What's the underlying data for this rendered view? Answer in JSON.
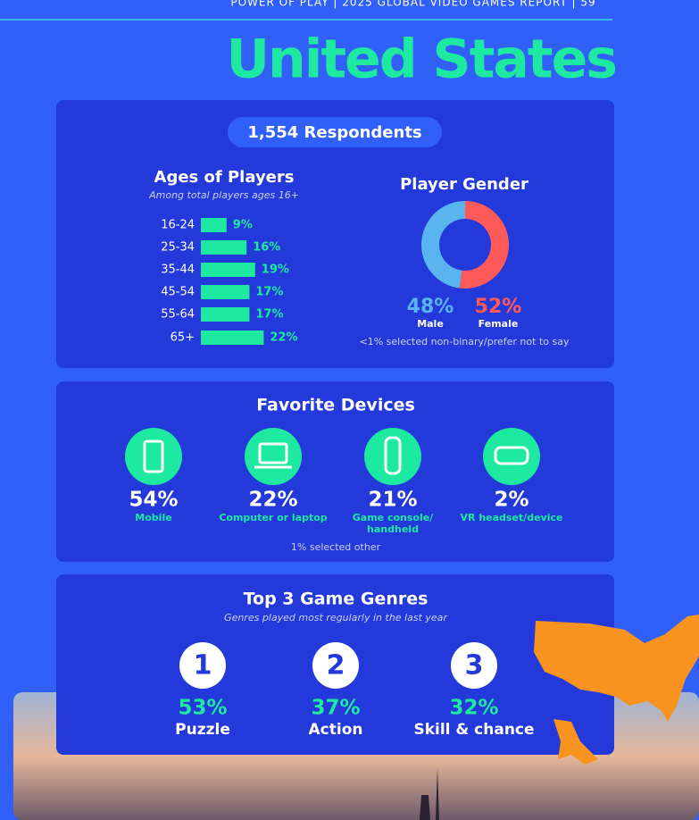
{
  "header": {
    "text": "POWER OF PLAY   |   2025 GLOBAL VIDEO GAMES REPORT   |   59"
  },
  "title": "United States",
  "respondents": "1,554 Respondents",
  "ages": {
    "title": "Ages of Players",
    "subtitle": "Among total players ages 16+",
    "categories": [
      "16-24",
      "25-34",
      "35-44",
      "45-54",
      "55-64",
      "65+"
    ],
    "values": [
      9,
      16,
      19,
      17,
      17,
      22
    ],
    "value_labels": [
      "9%",
      "16%",
      "19%",
      "17%",
      "17%",
      "22%"
    ],
    "color": "#1de9a0"
  },
  "gender": {
    "title": "Player Gender",
    "categories": [
      "Male",
      "Female"
    ],
    "values": [
      48,
      52
    ],
    "value_labels": [
      "48%",
      "52%"
    ],
    "colors": [
      "#5ab4f0",
      "#ff5a5a"
    ],
    "note": "<1% selected non-binary/prefer not to say"
  },
  "devices": {
    "title": "Favorite Devices",
    "items": [
      {
        "value": "54%",
        "label": "Mobile"
      },
      {
        "value": "22%",
        "label": "Computer or laptop"
      },
      {
        "value": "21%",
        "label": "Game console/ handheld"
      },
      {
        "value": "2%",
        "label": "VR headset/device"
      }
    ],
    "note": "1% selected other"
  },
  "genres": {
    "title": "Top 3 Game Genres",
    "subtitle": "Genres played most regularly in the last year",
    "items": [
      {
        "rank": "1",
        "value": "53%",
        "label": "Puzzle"
      },
      {
        "rank": "2",
        "value": "37%",
        "label": "Action"
      },
      {
        "rank": "3",
        "value": "32%",
        "label": "Skill & chance"
      }
    ]
  }
}
